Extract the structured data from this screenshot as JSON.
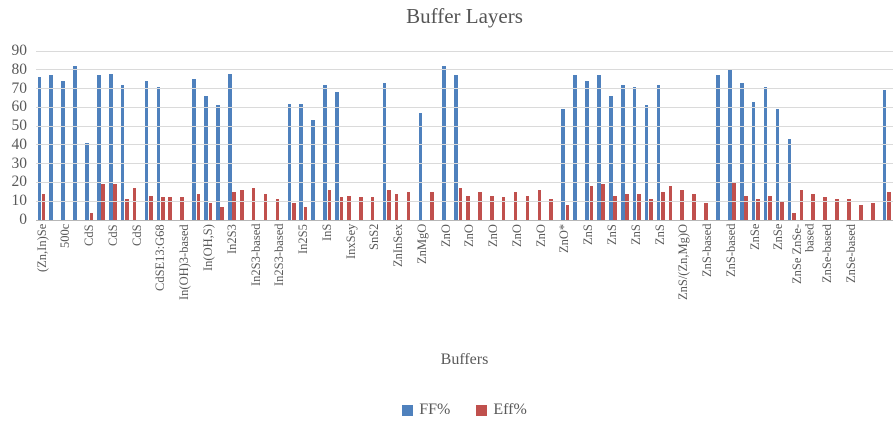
{
  "chart_data": {
    "type": "bar",
    "title": "Buffer Layers",
    "xlabel": "Buffers",
    "ylabel": "",
    "ylim": [
      0,
      90
    ],
    "ytick_step": 10,
    "grid": true,
    "legend_position": "bottom",
    "n_categories": 72,
    "label_interval": 2,
    "series": [
      {
        "name": "FF%",
        "color": "#4F81BD",
        "values": [
          76,
          77,
          74,
          82,
          41,
          77,
          78,
          72,
          null,
          74,
          71,
          null,
          null,
          75,
          66,
          61,
          78,
          null,
          null,
          null,
          null,
          62,
          62,
          53,
          72,
          68,
          null,
          null,
          null,
          73,
          null,
          null,
          57,
          null,
          82,
          77,
          null,
          null,
          null,
          null,
          null,
          null,
          null,
          null,
          59,
          77,
          74,
          77,
          66,
          72,
          71,
          61,
          72,
          null,
          null,
          null,
          null,
          77,
          80,
          73,
          63,
          71,
          59,
          43,
          null,
          null,
          null,
          null,
          null,
          null,
          null,
          69
        ]
      },
      {
        "name": "Eff%",
        "color": "#C0504D",
        "values": [
          14,
          null,
          null,
          null,
          4,
          19,
          19,
          11,
          17,
          13,
          12,
          12,
          12,
          14,
          9,
          7,
          15,
          16,
          17,
          14,
          11,
          9,
          7,
          null,
          16,
          12,
          13,
          12,
          12,
          16,
          14,
          15,
          null,
          15,
          null,
          17,
          13,
          15,
          13,
          12,
          15,
          13,
          16,
          11,
          8,
          null,
          18,
          19,
          13,
          14,
          14,
          11,
          15,
          18,
          16,
          14,
          9,
          null,
          20,
          13,
          11,
          13,
          10,
          4,
          16,
          14,
          12,
          11,
          11,
          8,
          9,
          15
        ]
      }
    ],
    "x_tick_labels": [
      "(Zn,In)Se",
      "500c",
      "CdS",
      "CdS",
      "CdS",
      "CdSE13:G68",
      "In(OH)3-based",
      "In(OH,S)",
      "In2S3",
      "In2S3-based",
      "In2S3-based",
      "In2S5",
      "InS",
      "InxSey",
      "SnS2",
      "ZnInSex",
      "ZnMgO",
      "ZnO",
      "ZnO",
      "ZnO",
      "ZnO",
      "ZnO",
      "ZnO*",
      "ZnS",
      "ZnS",
      "ZnS",
      "ZnS",
      "ZnS/(Zn,Mg)O",
      "ZnS-based",
      "ZnS-based",
      "ZnSe",
      "ZnSe",
      "ZnSe ZnSe-\nbased",
      "ZnSe-based",
      "ZnSe-based",
      ""
    ]
  },
  "colors": {
    "ff_series": "#4F81BD",
    "eff_series": "#C0504D",
    "text": "#595959",
    "gridline": "#DADADA",
    "axis_line": "#B7B7B7",
    "background": "#FFFFFF"
  }
}
